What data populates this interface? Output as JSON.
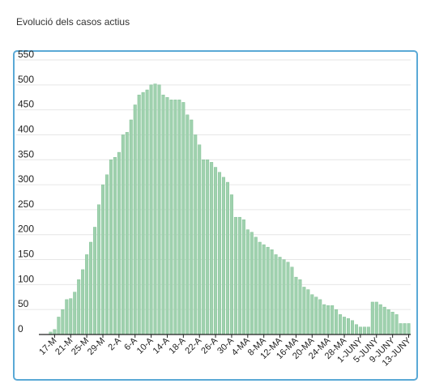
{
  "page": {
    "title": "Evolució dels casos actius"
  },
  "chart_data": {
    "type": "bar",
    "title": "Evolució dels casos actius",
    "xlabel": "",
    "ylabel": "",
    "ylim": [
      0,
      550
    ],
    "y_ticks": [
      0,
      50,
      100,
      150,
      200,
      250,
      300,
      350,
      400,
      450,
      500,
      550
    ],
    "grid": true,
    "bar_color": "#9fd1ae",
    "bar_stroke": "#7cbd8f",
    "x_tick_labels": [
      "17-M",
      "21-M",
      "25-M",
      "29-M",
      "2-A",
      "6-A",
      "10-A",
      "14-A",
      "18-A",
      "22-A",
      "26-A",
      "30-A",
      "4-MA",
      "8-MA",
      "12-MA",
      "16-MA",
      "20-MA",
      "24-MA",
      "28-MA",
      "1-JUNY",
      "5-JUNY",
      "9-JUNY",
      "13-JUNY"
    ],
    "x_tick_step": 4,
    "values": [
      0,
      0,
      5,
      10,
      35,
      50,
      70,
      72,
      85,
      110,
      130,
      160,
      185,
      215,
      260,
      300,
      320,
      350,
      355,
      365,
      400,
      405,
      430,
      460,
      480,
      485,
      490,
      500,
      502,
      500,
      480,
      475,
      470,
      470,
      470,
      465,
      440,
      430,
      400,
      380,
      350,
      350,
      345,
      335,
      325,
      315,
      305,
      280,
      235,
      235,
      230,
      210,
      205,
      195,
      185,
      180,
      175,
      170,
      160,
      155,
      150,
      145,
      135,
      115,
      110,
      95,
      90,
      80,
      75,
      70,
      60,
      58,
      58,
      50,
      40,
      35,
      32,
      28,
      20,
      15,
      15,
      15,
      65,
      65,
      60,
      55,
      50,
      45,
      40,
      22,
      22,
      22
    ]
  }
}
